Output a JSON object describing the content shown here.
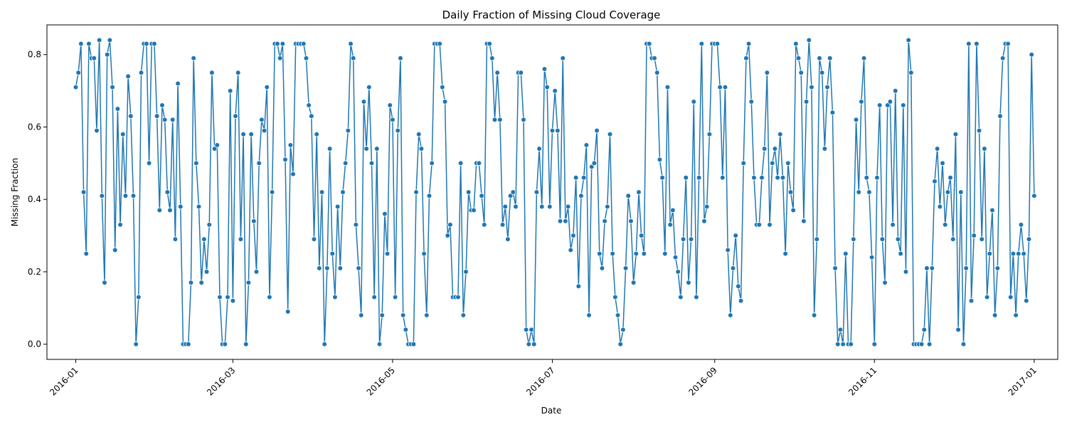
{
  "chart_data": {
    "type": "line",
    "title": "Daily Fraction of Missing Cloud Coverage",
    "xlabel": "Date",
    "ylabel": "Missing Fraction",
    "x_start": "2016-01-01",
    "x_end": "2016-12-31",
    "xlim": [
      "2015-12-21",
      "2017-01-10"
    ],
    "ylim": [
      -0.042,
      0.882
    ],
    "x_ticks": [
      {
        "date": "2016-01-01",
        "label": "2016-01"
      },
      {
        "date": "2016-03-01",
        "label": "2016-03"
      },
      {
        "date": "2016-05-01",
        "label": "2016-05"
      },
      {
        "date": "2016-07-01",
        "label": "2016-07"
      },
      {
        "date": "2016-09-01",
        "label": "2016-09"
      },
      {
        "date": "2016-11-01",
        "label": "2016-11"
      },
      {
        "date": "2017-01-01",
        "label": "2017-01"
      }
    ],
    "y_ticks": [
      {
        "value": 0.0,
        "label": "0.0"
      },
      {
        "value": 0.2,
        "label": "0.2"
      },
      {
        "value": 0.4,
        "label": "0.4"
      },
      {
        "value": 0.6,
        "label": "0.6"
      },
      {
        "value": 0.8,
        "label": "0.8"
      }
    ],
    "grid": false,
    "series": [
      {
        "color": "#1f77b4",
        "marker": "circle",
        "values": [
          0.71,
          0.75,
          0.83,
          0.42,
          0.25,
          0.83,
          0.79,
          0.79,
          0.59,
          0.84,
          0.41,
          0.17,
          0.8,
          0.84,
          0.71,
          0.26,
          0.65,
          0.33,
          0.58,
          0.41,
          0.74,
          0.63,
          0.41,
          0.0,
          0.13,
          0.75,
          0.83,
          0.83,
          0.5,
          0.83,
          0.83,
          0.63,
          0.37,
          0.66,
          0.62,
          0.42,
          0.37,
          0.62,
          0.29,
          0.72,
          0.38,
          0.0,
          0.0,
          0.0,
          0.17,
          0.79,
          0.5,
          0.38,
          0.17,
          0.29,
          0.2,
          0.33,
          0.75,
          0.54,
          0.55,
          0.13,
          0.0,
          0.0,
          0.13,
          0.7,
          0.12,
          0.63,
          0.75,
          0.29,
          0.58,
          0.0,
          0.17,
          0.58,
          0.34,
          0.2,
          0.5,
          0.62,
          0.59,
          0.71,
          0.13,
          0.42,
          0.83,
          0.83,
          0.79,
          0.83,
          0.51,
          0.09,
          0.55,
          0.47,
          0.83,
          0.83,
          0.83,
          0.83,
          0.79,
          0.66,
          0.63,
          0.29,
          0.58,
          0.21,
          0.42,
          0.0,
          0.21,
          0.54,
          0.25,
          0.13,
          0.38,
          0.21,
          0.42,
          0.5,
          0.59,
          0.83,
          0.79,
          0.33,
          0.21,
          0.08,
          0.67,
          0.54,
          0.71,
          0.5,
          0.13,
          0.54,
          0.0,
          0.08,
          0.36,
          0.25,
          0.66,
          0.62,
          0.13,
          0.59,
          0.79,
          0.08,
          0.04,
          0.0,
          0.0,
          0.0,
          0.42,
          0.58,
          0.54,
          0.25,
          0.08,
          0.41,
          0.5,
          0.83,
          0.83,
          0.83,
          0.71,
          0.67,
          0.3,
          0.33,
          0.13,
          0.13,
          0.13,
          0.5,
          0.08,
          0.2,
          0.42,
          0.37,
          0.37,
          0.5,
          0.5,
          0.41,
          0.33,
          0.83,
          0.83,
          0.79,
          0.62,
          0.75,
          0.62,
          0.33,
          0.38,
          0.29,
          0.41,
          0.42,
          0.38,
          0.75,
          0.75,
          0.62,
          0.04,
          0.0,
          0.04,
          0.0,
          0.42,
          0.54,
          0.38,
          0.76,
          0.71,
          0.38,
          0.59,
          0.7,
          0.59,
          0.34,
          0.79,
          0.34,
          0.38,
          0.26,
          0.3,
          0.46,
          0.16,
          0.41,
          0.46,
          0.55,
          0.08,
          0.49,
          0.5,
          0.59,
          0.25,
          0.21,
          0.34,
          0.38,
          0.58,
          0.25,
          0.13,
          0.08,
          0.0,
          0.04,
          0.21,
          0.41,
          0.34,
          0.17,
          0.25,
          0.42,
          0.3,
          0.25,
          0.83,
          0.83,
          0.79,
          0.79,
          0.75,
          0.51,
          0.46,
          0.25,
          0.71,
          0.33,
          0.37,
          0.24,
          0.2,
          0.13,
          0.29,
          0.46,
          0.17,
          0.29,
          0.67,
          0.13,
          0.46,
          0.83,
          0.34,
          0.38,
          0.58,
          0.83,
          0.83,
          0.83,
          0.71,
          0.46,
          0.71,
          0.26,
          0.08,
          0.21,
          0.3,
          0.16,
          0.12,
          0.5,
          0.79,
          0.83,
          0.67,
          0.46,
          0.33,
          0.33,
          0.46,
          0.54,
          0.75,
          0.33,
          0.5,
          0.54,
          0.46,
          0.58,
          0.46,
          0.25,
          0.5,
          0.42,
          0.37,
          0.83,
          0.79,
          0.75,
          0.34,
          0.67,
          0.84,
          0.71,
          0.08,
          0.29,
          0.79,
          0.75,
          0.54,
          0.71,
          0.79,
          0.64,
          0.21,
          0.0,
          0.04,
          0.0,
          0.25,
          0.0,
          0.0,
          0.29,
          0.62,
          0.42,
          0.67,
          0.79,
          0.46,
          0.42,
          0.24,
          0.0,
          0.46,
          0.66,
          0.29,
          0.17,
          0.66,
          0.67,
          0.33,
          0.7,
          0.29,
          0.25,
          0.66,
          0.2,
          0.84,
          0.75,
          0.0,
          0.0,
          0.0,
          0.0,
          0.04,
          0.21,
          0.0,
          0.21,
          0.45,
          0.54,
          0.38,
          0.5,
          0.33,
          0.42,
          0.46,
          0.29,
          0.58,
          0.04,
          0.42,
          0.0,
          0.21,
          0.83,
          0.12,
          0.3,
          0.83,
          0.59,
          0.29,
          0.54,
          0.13,
          0.25,
          0.37,
          0.08,
          0.21,
          0.63,
          0.79,
          0.83,
          0.83,
          0.13,
          0.25,
          0.08,
          0.25,
          0.33,
          0.25,
          0.12,
          0.29,
          0.8,
          0.41
        ]
      }
    ]
  }
}
